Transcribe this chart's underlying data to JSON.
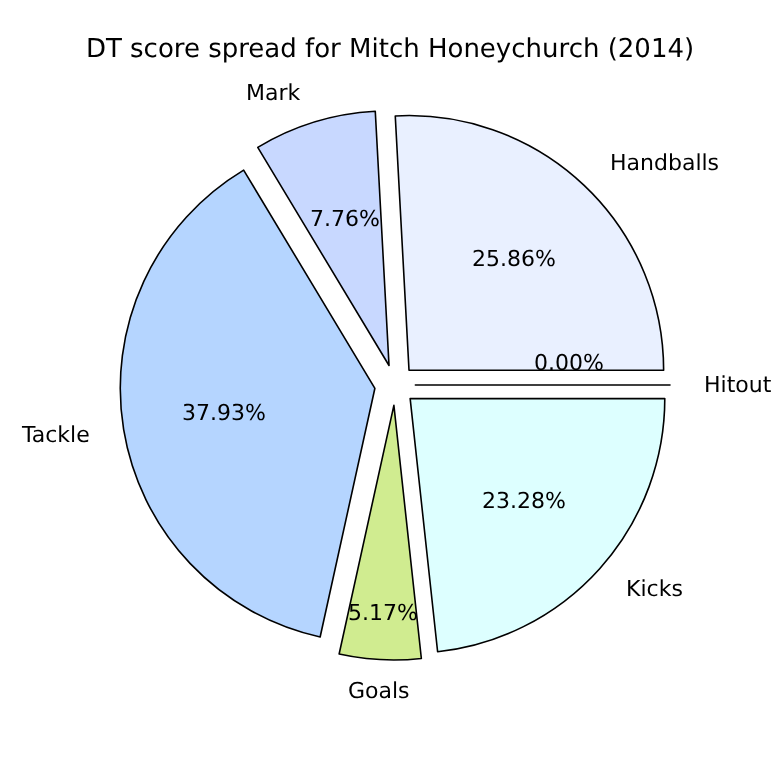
{
  "chart_data": {
    "type": "pie",
    "title": "DT score spread for Mitch Honeychurch (2014)",
    "categories": [
      "Hitout",
      "Handballs",
      "Mark",
      "Tackle",
      "Goals",
      "Kicks"
    ],
    "values": [
      0,
      25.86,
      7.76,
      37.93,
      5.17,
      23.28
    ],
    "value_labels": [
      "0.00%",
      "25.86%",
      "7.76%",
      "37.93%",
      "5.17%",
      "23.28%"
    ],
    "colors": [
      "#ffffff",
      "#e9f0ff",
      "#c8d8ff",
      "#b5d5ff",
      "#d0ec90",
      "#ddffff"
    ],
    "legend": false
  }
}
